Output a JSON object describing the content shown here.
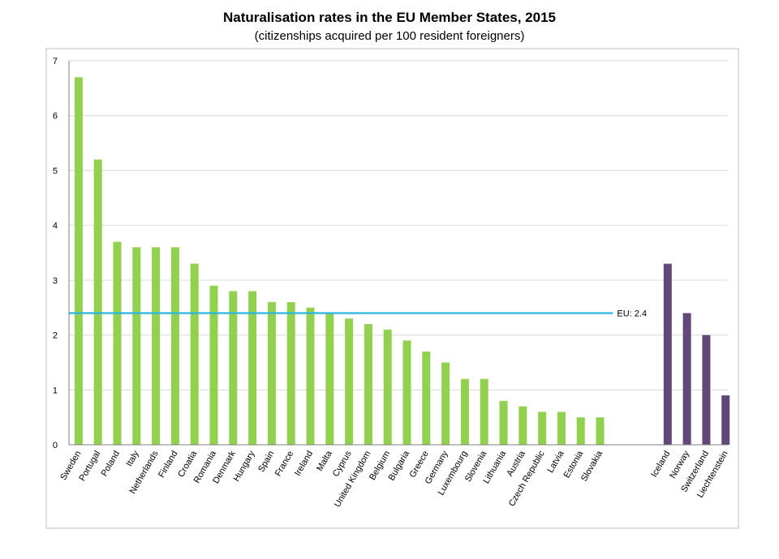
{
  "chart_data": {
    "type": "bar",
    "title": "Naturalisation rates in the EU Member States, 2015",
    "subtitle": "(citizenships acquired per 100 resident foreigners)",
    "xlabel": "",
    "ylabel": "",
    "ylim": [
      0,
      7
    ],
    "yticks": [
      0,
      1,
      2,
      3,
      4,
      5,
      6,
      7
    ],
    "grid": true,
    "groups": [
      {
        "color": "#92d050",
        "categories": [
          "Sweden",
          "Portugal",
          "Poland",
          "Italy",
          "Netherlands",
          "Finland",
          "Croatia",
          "Romania",
          "Denmark",
          "Hungary",
          "Spain",
          "France",
          "Ireland",
          "Malta",
          "Cyprus",
          "United Kingdom",
          "Belgium",
          "Bulgaria",
          "Greece",
          "Germany",
          "Luxembourg",
          "Slovenia",
          "Lithuania",
          "Austria",
          "Czech Republic",
          "Latvia",
          "Estonia",
          "Slovakia"
        ],
        "values": [
          6.7,
          5.2,
          3.7,
          3.6,
          3.6,
          3.6,
          3.3,
          2.9,
          2.8,
          2.8,
          2.6,
          2.6,
          2.5,
          2.4,
          2.3,
          2.2,
          2.1,
          1.9,
          1.7,
          1.5,
          1.2,
          1.2,
          0.8,
          0.7,
          0.6,
          0.6,
          0.5,
          0.5
        ]
      },
      {
        "color": "#60497a",
        "categories": [
          "Iceland",
          "Norway",
          "Switzerland",
          "Liechtenstein"
        ],
        "values": [
          3.3,
          2.4,
          2.0,
          0.9
        ]
      }
    ],
    "reference_line": {
      "value": 2.4,
      "label": "EU: 2.4",
      "color": "#2bb5e0"
    }
  }
}
